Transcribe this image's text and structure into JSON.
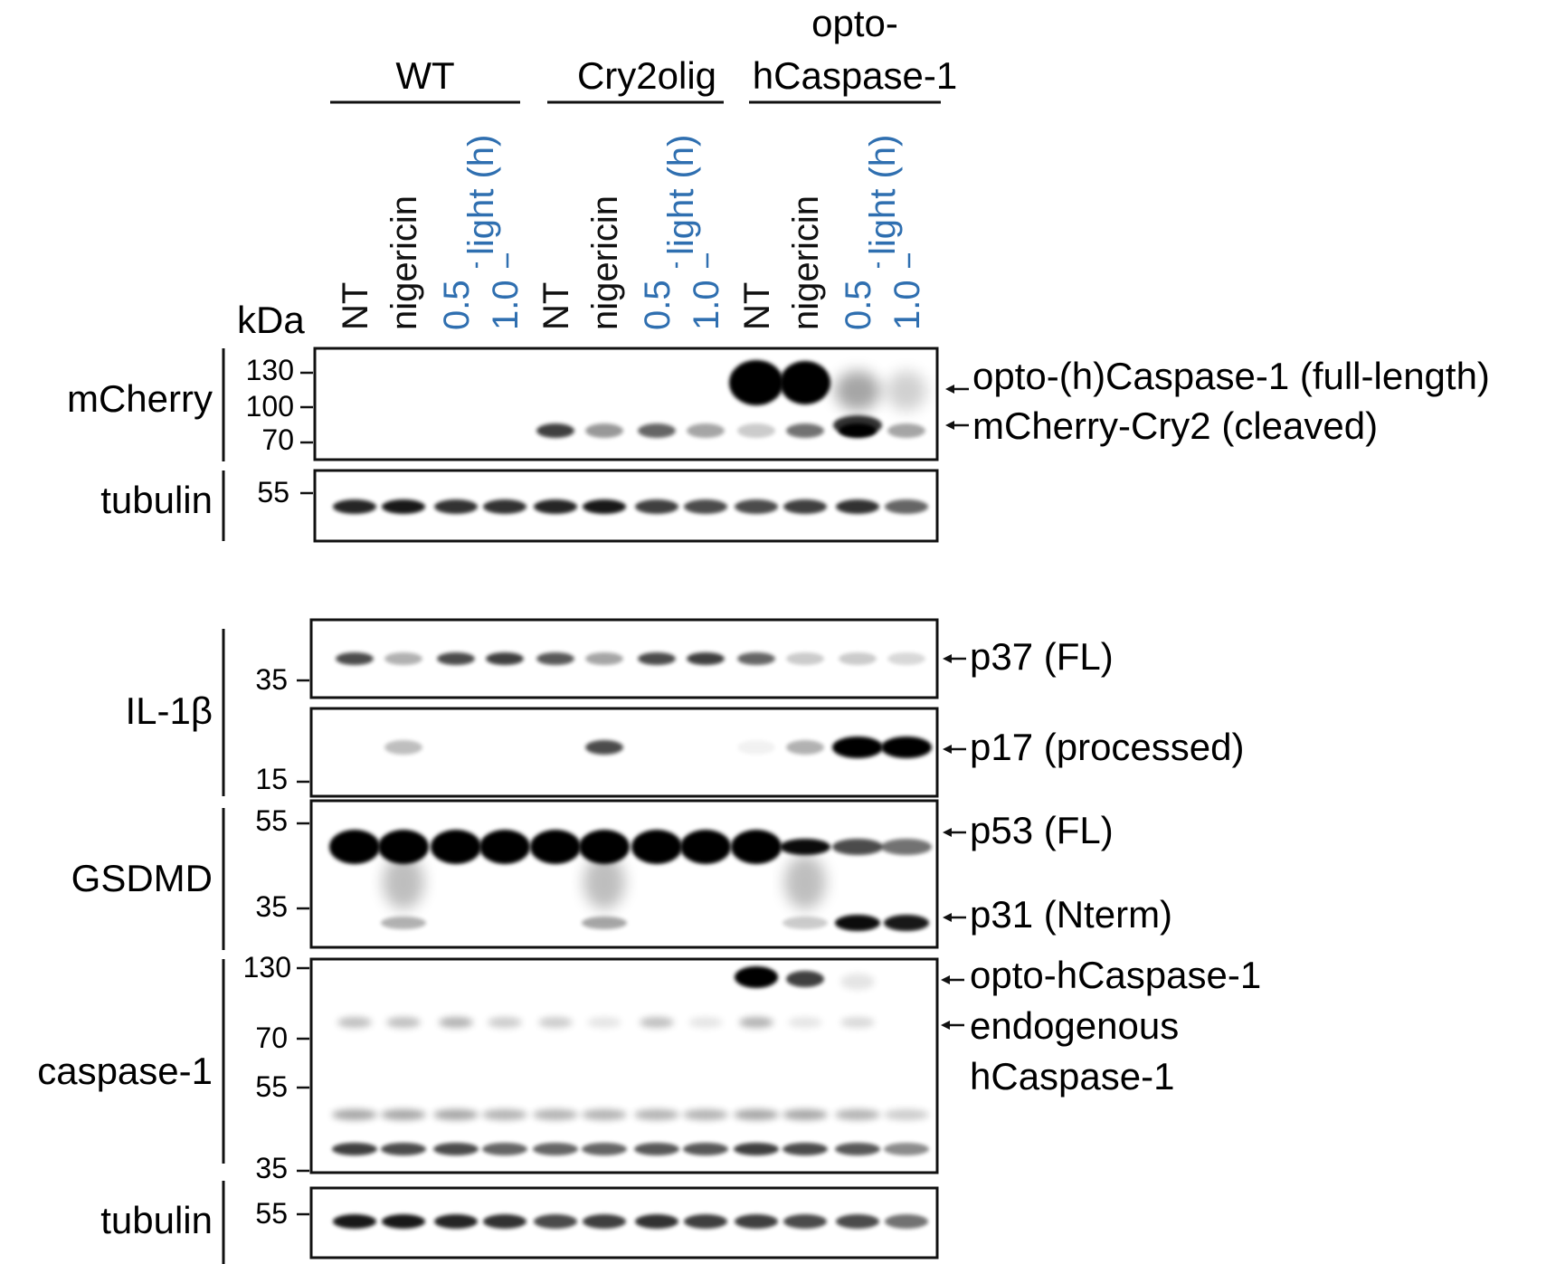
{
  "groups": [
    {
      "id": "wt",
      "label_lines": [
        "WT"
      ]
    },
    {
      "id": "cry2olig",
      "label_lines": [
        "Cry2olig"
      ]
    },
    {
      "id": "opto",
      "label_lines": [
        "opto-",
        "hCaspase-1"
      ]
    }
  ],
  "lanes": [
    {
      "label": "NT",
      "color": "#111111"
    },
    {
      "label": "nigericin",
      "color": "#111111"
    },
    {
      "label": "0.5",
      "color": "#2f6fb0"
    },
    {
      "label": "1.0",
      "color": "#2f6fb0"
    },
    {
      "label": "NT",
      "color": "#111111"
    },
    {
      "label": "nigericin",
      "color": "#111111"
    },
    {
      "label": "0.5",
      "color": "#2f6fb0"
    },
    {
      "label": "1.0",
      "color": "#2f6fb0"
    },
    {
      "label": "NT",
      "color": "#111111"
    },
    {
      "label": "nigericin",
      "color": "#111111"
    },
    {
      "label": "0.5",
      "color": "#2f6fb0"
    },
    {
      "label": "1.0",
      "color": "#2f6fb0"
    }
  ],
  "light_label": "light (h)",
  "light_color": "#2f6fb0",
  "kda_label": "kDa",
  "antibodies": {
    "mcherry": "mCherry",
    "tubulin_top": "tubulin",
    "il1b": "IL-1β",
    "gsdmd": "GSDMD",
    "caspase1": "caspase-1",
    "tubulin_bottom": "tubulin"
  },
  "markers": {
    "mcherry": [
      "130",
      "100",
      "70"
    ],
    "tubulin_top": [
      "55"
    ],
    "il1b_top": [
      "35"
    ],
    "il1b_bottom": [
      "15"
    ],
    "gsdmd": [
      "55",
      "35"
    ],
    "caspase1": [
      "130",
      "70",
      "55",
      "35"
    ],
    "tubulin_bottom": [
      "55"
    ]
  },
  "annotations": {
    "mcherry_fl": "opto-(h)Caspase-1 (full-length)",
    "mcherry_cleaved": "mCherry-Cry2 (cleaved)",
    "p37": "p37 (FL)",
    "p17": "p17 (processed)",
    "p53": "p53 (FL)",
    "p31": "p31 (Nterm)",
    "opto_hcasp": "opto-hCaspase-1",
    "endo_1": "endogenous",
    "endo_2": "hCaspase-1"
  }
}
